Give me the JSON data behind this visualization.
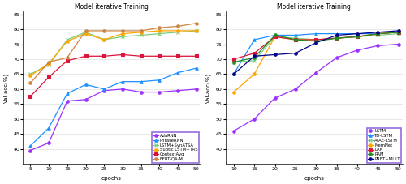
{
  "title": "Model iterative Training",
  "xlabel": "epochs",
  "ylabel": "Val-acc(%)",
  "ylim": [
    35,
    86
  ],
  "yticks": [
    40,
    45,
    50,
    55,
    60,
    65,
    70,
    75,
    80,
    85
  ],
  "left_xticks": [
    5,
    10,
    15,
    20,
    25,
    30,
    35,
    40,
    45,
    50
  ],
  "right_xticks": [
    10,
    15,
    20,
    25,
    30,
    35,
    40,
    45,
    50
  ],
  "left_series": {
    "AdaRNN": {
      "color": "#9B30FF",
      "marker": "o",
      "x": [
        5,
        10,
        15,
        20,
        25,
        30,
        35,
        40,
        45,
        50
      ],
      "y": [
        39.5,
        42.0,
        56.0,
        56.5,
        59.5,
        60.0,
        59.0,
        59.0,
        59.5,
        60.0
      ]
    },
    "PhraseRNN": {
      "color": "#1E90FF",
      "marker": "^",
      "x": [
        5,
        10,
        15,
        20,
        25,
        30,
        35,
        40,
        45,
        50
      ],
      "y": [
        41.0,
        47.0,
        58.5,
        61.5,
        60.0,
        62.5,
        62.5,
        63.0,
        65.5,
        67.0
      ]
    },
    "LSTM+SynATSA": {
      "color": "#7CCD7C",
      "marker": "x",
      "x": [
        5,
        10,
        15,
        20,
        25,
        30,
        35,
        40,
        45,
        50
      ],
      "y": [
        65.0,
        68.0,
        76.5,
        79.0,
        76.5,
        77.5,
        78.0,
        78.5,
        79.0,
        79.5
      ]
    },
    "Subtic LSTM+TAS": {
      "color": "#FFA500",
      "marker": "o",
      "x": [
        5,
        10,
        15,
        20,
        25,
        30,
        35,
        40,
        45,
        50
      ],
      "y": [
        64.5,
        68.5,
        76.0,
        78.5,
        76.5,
        78.5,
        79.0,
        79.5,
        79.5,
        79.5
      ]
    },
    "ContextAvg": {
      "color": "#DC143C",
      "marker": "s",
      "x": [
        5,
        10,
        15,
        20,
        25,
        30,
        35,
        40,
        45,
        50
      ],
      "y": [
        57.5,
        64.0,
        69.5,
        71.0,
        71.0,
        71.5,
        71.0,
        71.0,
        71.0,
        71.0
      ]
    },
    "BERT-QA-M": {
      "color": "#CD853F",
      "marker": "o",
      "x": [
        5,
        10,
        15,
        20,
        25,
        30,
        35,
        40,
        45,
        50
      ],
      "y": [
        62.0,
        69.0,
        70.5,
        79.5,
        79.5,
        79.5,
        79.5,
        80.5,
        81.0,
        82.0
      ]
    }
  },
  "right_series": {
    "LSTM": {
      "color": "#9B30FF",
      "marker": "o",
      "x": [
        10,
        15,
        20,
        25,
        30,
        35,
        40,
        45,
        50
      ],
      "y": [
        46.0,
        50.0,
        57.0,
        60.0,
        65.5,
        70.5,
        73.0,
        74.5,
        75.0
      ]
    },
    "TD-LSTM": {
      "color": "#1E90FF",
      "marker": "^",
      "x": [
        10,
        15,
        20,
        25,
        30,
        35,
        40,
        45,
        50
      ],
      "y": [
        65.0,
        76.5,
        78.0,
        78.0,
        78.5,
        78.5,
        78.5,
        78.5,
        79.0
      ]
    },
    "ATAE-LSTM": {
      "color": "#7CCD7C",
      "marker": "x",
      "x": [
        10,
        15,
        20,
        25,
        30,
        35,
        40,
        45,
        50
      ],
      "y": [
        69.0,
        69.5,
        77.5,
        77.0,
        76.5,
        77.0,
        77.5,
        78.0,
        78.5
      ]
    },
    "MemNet": {
      "color": "#FFA500",
      "marker": "o",
      "x": [
        10,
        15,
        20,
        25,
        30,
        35,
        40,
        45,
        50
      ],
      "y": [
        59.0,
        65.0,
        77.5,
        76.5,
        76.5,
        77.0,
        77.5,
        78.5,
        79.0
      ]
    },
    "LAN": {
      "color": "#DC143C",
      "marker": "s",
      "x": [
        10,
        15,
        20,
        25,
        30,
        35,
        40,
        45,
        50
      ],
      "y": [
        70.0,
        72.0,
        77.5,
        76.5,
        76.5,
        77.0,
        77.5,
        78.5,
        79.0
      ]
    },
    "RAM": {
      "color": "#228B22",
      "marker": "o",
      "x": [
        10,
        15,
        20,
        25,
        30,
        35,
        40,
        45,
        50
      ],
      "y": [
        69.0,
        70.5,
        78.0,
        76.5,
        76.0,
        77.0,
        77.5,
        78.5,
        79.0
      ]
    },
    "PRET+MULT": {
      "color": "#00008B",
      "marker": "o",
      "x": [
        10,
        15,
        20,
        25,
        30,
        35,
        40,
        45,
        50
      ],
      "y": [
        65.0,
        71.0,
        71.5,
        72.0,
        75.5,
        78.0,
        78.5,
        79.0,
        79.5
      ]
    }
  },
  "legend_box_color": "#9370DB",
  "background_color": "#FFFFFF",
  "grid_color": "#CCCCCC"
}
